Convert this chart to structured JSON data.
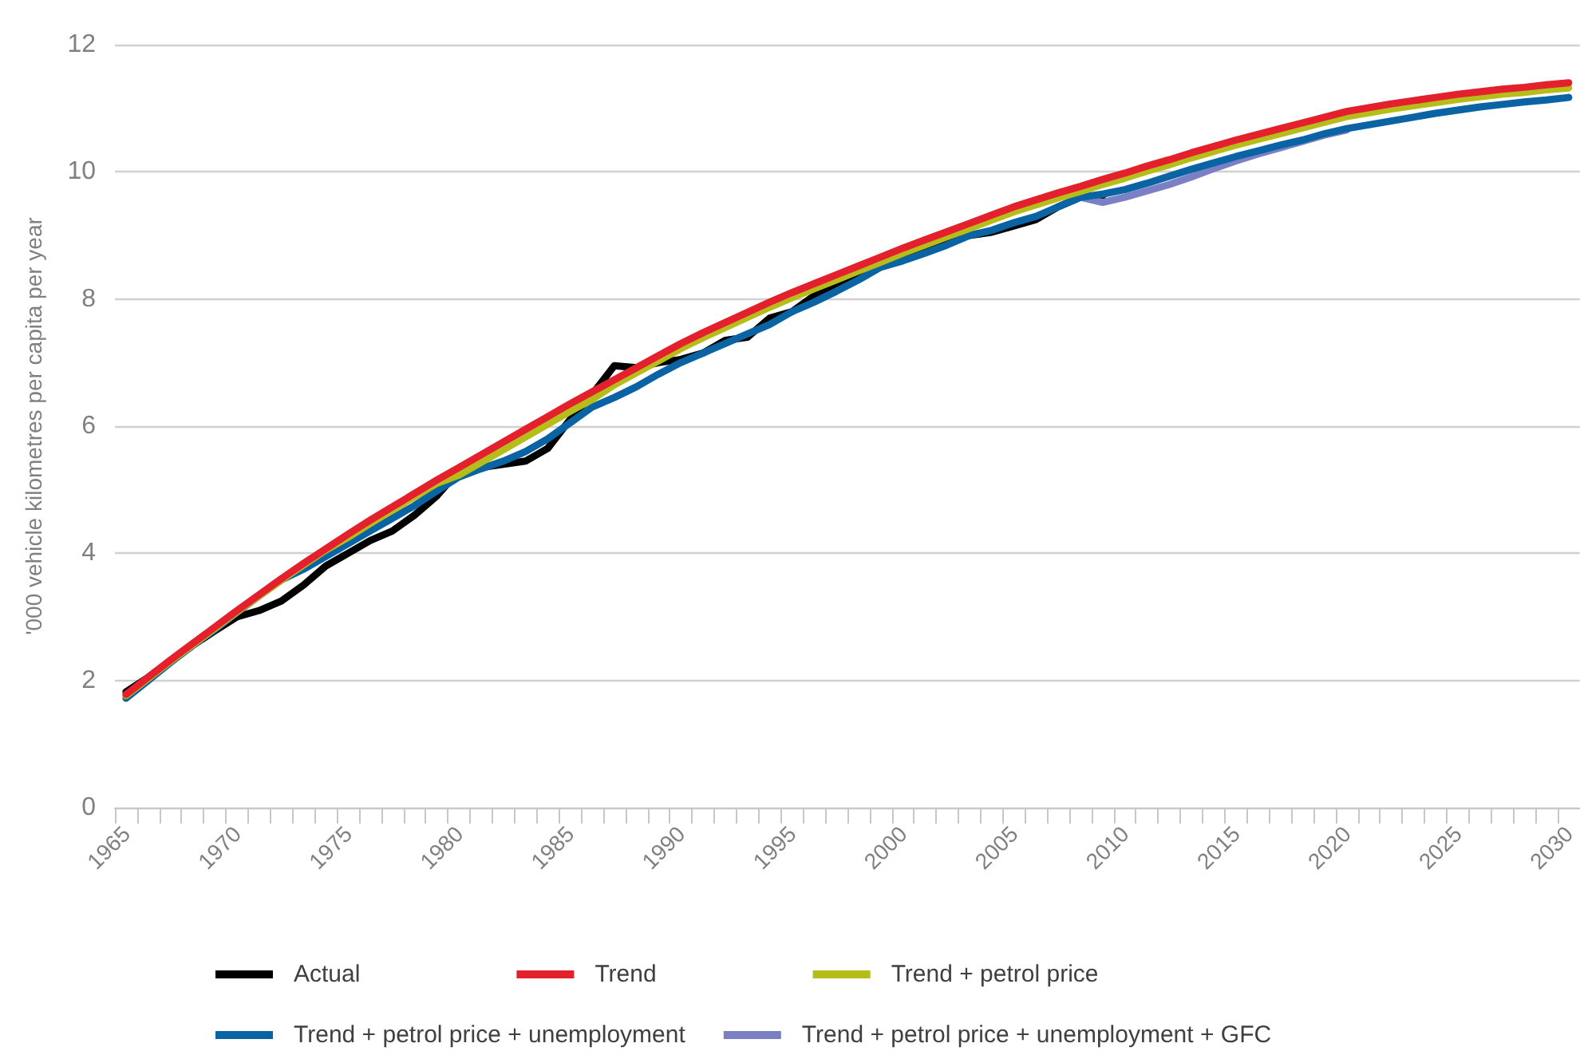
{
  "chart_data": {
    "type": "line",
    "ylabel": "'000 vehicle kilometres per capita per year",
    "categories": [
      "1965",
      null,
      null,
      null,
      null,
      "1970",
      null,
      null,
      null,
      null,
      "1975",
      null,
      null,
      null,
      null,
      "1980",
      null,
      null,
      null,
      null,
      "1985",
      null,
      null,
      null,
      null,
      "1990",
      null,
      null,
      null,
      null,
      "1995",
      null,
      null,
      null,
      null,
      "2000",
      null,
      null,
      null,
      null,
      "2005",
      null,
      null,
      null,
      null,
      "2010",
      null,
      null,
      null,
      null,
      "2015",
      null,
      null,
      null,
      null,
      "2020",
      null,
      null,
      null,
      null,
      "2025",
      null,
      null,
      null,
      null,
      "2030"
    ],
    "ylim": [
      0,
      12
    ],
    "yticks": [
      0,
      2,
      4,
      6,
      8,
      10,
      12
    ],
    "grid": "y",
    "legend": "bottom",
    "marker": "none",
    "line_style": "solid",
    "series": [
      {
        "name": "Actual",
        "color": "#000000",
        "values": [
          1.82,
          2.05,
          2.3,
          2.55,
          2.78,
          3.0,
          3.1,
          3.25,
          3.5,
          3.8,
          4.0,
          4.2,
          4.35,
          4.6,
          4.9,
          5.3,
          5.35,
          5.4,
          5.45,
          5.65,
          6.1,
          6.5,
          6.95,
          6.92,
          7.0,
          7.05,
          7.15,
          7.35,
          7.4,
          7.7,
          7.8,
          8.05,
          8.2,
          8.35,
          8.6,
          8.7,
          8.75,
          8.9,
          9.0,
          9.05,
          9.15,
          9.25,
          9.45,
          9.6,
          9.62,
          null,
          null,
          null,
          null,
          null,
          null,
          null,
          null,
          null,
          null,
          null,
          null,
          null,
          null,
          null,
          null,
          null,
          null,
          null,
          null,
          null
        ]
      },
      {
        "name": "Trend",
        "color": "#e3202b",
        "values": [
          1.78,
          2.05,
          2.32,
          2.58,
          2.84,
          3.1,
          3.35,
          3.6,
          3.84,
          4.07,
          4.3,
          4.52,
          4.73,
          4.94,
          5.15,
          5.35,
          5.55,
          5.75,
          5.95,
          6.15,
          6.35,
          6.54,
          6.73,
          6.92,
          7.11,
          7.3,
          7.47,
          7.63,
          7.79,
          7.95,
          8.1,
          8.24,
          8.38,
          8.52,
          8.66,
          8.8,
          8.93,
          9.06,
          9.19,
          9.32,
          9.45,
          9.56,
          9.67,
          9.77,
          9.88,
          9.98,
          10.09,
          10.19,
          10.3,
          10.4,
          10.5,
          10.59,
          10.68,
          10.77,
          10.86,
          10.95,
          11.01,
          11.07,
          11.12,
          11.17,
          11.22,
          11.26,
          11.3,
          11.33,
          11.37,
          11.4
        ]
      },
      {
        "name": "Trend + petrol price",
        "color": "#b5bd1a",
        "values": [
          1.76,
          2.03,
          2.3,
          2.56,
          2.82,
          3.08,
          3.33,
          3.58,
          3.82,
          4.05,
          4.25,
          4.47,
          4.68,
          4.89,
          5.1,
          5.23,
          5.43,
          5.63,
          5.83,
          6.03,
          6.23,
          6.42,
          6.65,
          6.84,
          7.03,
          7.22,
          7.39,
          7.55,
          7.71,
          7.87,
          8.02,
          8.16,
          8.3,
          8.44,
          8.58,
          8.72,
          8.85,
          8.98,
          9.11,
          9.24,
          9.37,
          9.48,
          9.59,
          9.69,
          9.8,
          9.9,
          10.01,
          10.11,
          10.22,
          10.32,
          10.42,
          10.51,
          10.6,
          10.69,
          10.78,
          10.87,
          10.93,
          10.99,
          11.04,
          11.09,
          11.14,
          11.18,
          11.22,
          11.25,
          11.29,
          11.32
        ]
      },
      {
        "name": "Trend + petrol price + unemployment",
        "color": "#0a64a4",
        "values": [
          1.72,
          2.0,
          2.28,
          2.55,
          2.8,
          3.07,
          3.33,
          3.58,
          3.75,
          3.95,
          4.15,
          4.35,
          4.55,
          4.75,
          4.98,
          5.2,
          5.33,
          5.45,
          5.6,
          5.8,
          6.05,
          6.3,
          6.45,
          6.62,
          6.82,
          7.0,
          7.15,
          7.3,
          7.45,
          7.6,
          7.8,
          7.95,
          8.12,
          8.3,
          8.5,
          8.6,
          8.72,
          8.85,
          9.0,
          9.08,
          9.2,
          9.3,
          9.45,
          9.6,
          9.65,
          9.72,
          9.82,
          9.93,
          10.04,
          10.14,
          10.24,
          10.33,
          10.42,
          10.5,
          10.6,
          10.68,
          10.74,
          10.8,
          10.86,
          10.92,
          10.97,
          11.02,
          11.06,
          11.1,
          11.13,
          11.17
        ]
      },
      {
        "name": "Trend + petrol price + unemployment + GFC",
        "color": "#7b7fc4",
        "values": [
          null,
          null,
          null,
          null,
          null,
          null,
          null,
          null,
          null,
          null,
          null,
          null,
          null,
          null,
          null,
          null,
          null,
          null,
          null,
          null,
          null,
          null,
          null,
          null,
          null,
          null,
          null,
          null,
          null,
          null,
          null,
          null,
          null,
          null,
          null,
          null,
          null,
          null,
          null,
          null,
          null,
          null,
          null,
          9.6,
          9.52,
          9.6,
          9.7,
          9.8,
          9.92,
          10.05,
          10.17,
          10.28,
          10.38,
          10.48,
          10.58,
          10.66,
          null,
          null,
          null,
          null,
          null,
          null,
          null,
          null,
          null,
          null
        ]
      }
    ]
  }
}
